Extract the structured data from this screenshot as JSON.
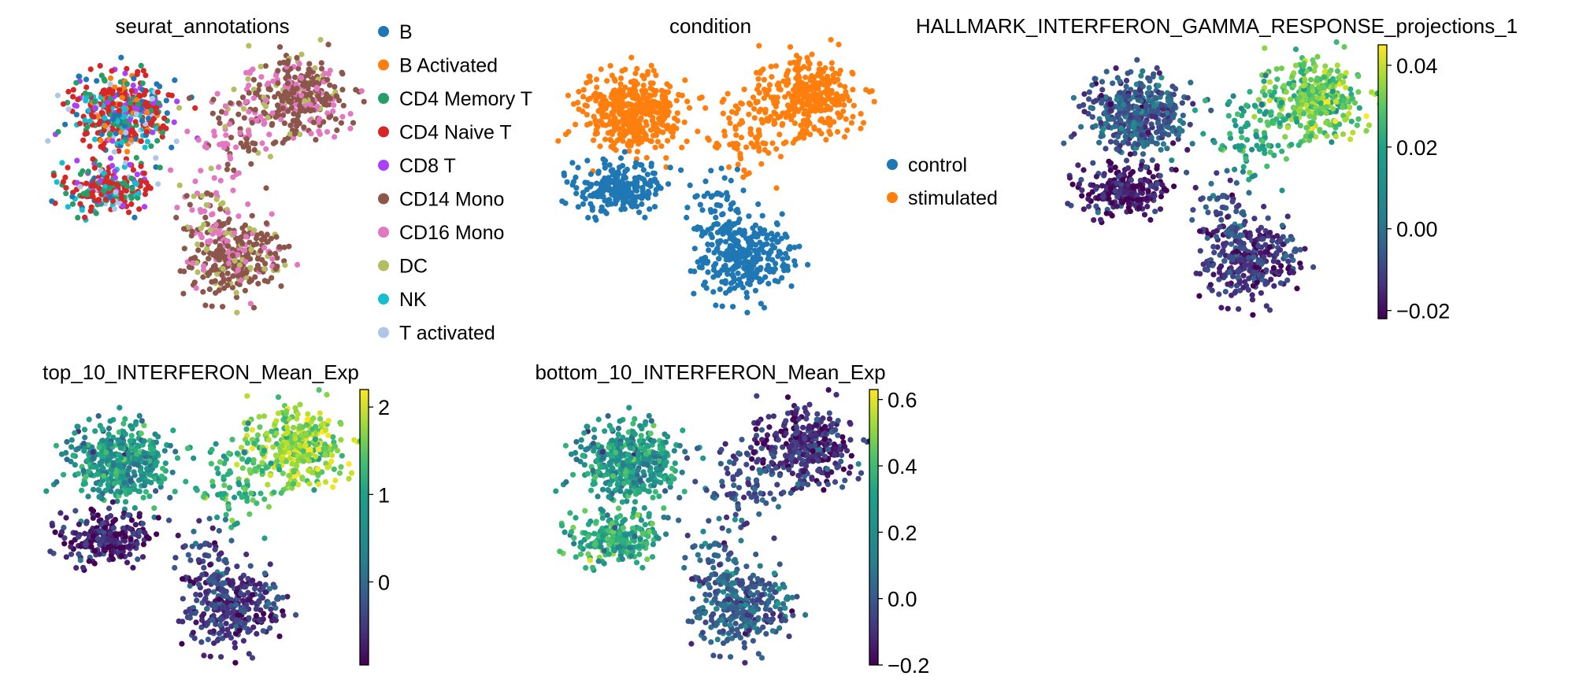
{
  "chart_data": [
    {
      "type": "scatter",
      "title": "seurat_annotations",
      "color_by": "categorical",
      "legend_position": "right",
      "legend": [
        {
          "label": "B",
          "color": "#1f77b4"
        },
        {
          "label": "B Activated",
          "color": "#ff7f0e"
        },
        {
          "label": "CD4 Memory T",
          "color": "#279e68"
        },
        {
          "label": "CD4 Naive T",
          "color": "#d62728"
        },
        {
          "label": "CD8 T",
          "color": "#aa40fc"
        },
        {
          "label": "CD14 Mono",
          "color": "#8c564b"
        },
        {
          "label": "CD16 Mono",
          "color": "#e377c2"
        },
        {
          "label": "DC",
          "color": "#b5bd61"
        },
        {
          "label": "NK",
          "color": "#17becf"
        },
        {
          "label": "T activated",
          "color": "#aec7e8"
        }
      ]
    },
    {
      "type": "scatter",
      "title": "condition",
      "color_by": "categorical",
      "legend_position": "right",
      "legend": [
        {
          "label": "control",
          "color": "#1f77b4"
        },
        {
          "label": "stimulated",
          "color": "#ff7f0e"
        }
      ]
    },
    {
      "type": "scatter",
      "title": "HALLMARK_INTERFERON_GAMMA_RESPONSE_projections_1",
      "color_by": "continuous",
      "colormap": "viridis",
      "clim": [
        -0.022,
        0.045
      ],
      "colorbar_ticks": [
        {
          "value": 0.04,
          "label": "0.04"
        },
        {
          "value": 0.02,
          "label": "0.02"
        },
        {
          "value": 0.0,
          "label": "0.00"
        },
        {
          "value": -0.02,
          "label": "−0.02"
        }
      ],
      "cluster_values": {
        "tcells_a": -0.003,
        "tcells_b": -0.018,
        "mono_stim": 0.03,
        "mono_ctrl": -0.012,
        "bridge_stim": 0.018,
        "bridge_ctrl": -0.006
      }
    },
    {
      "type": "scatter",
      "title": "top_10_INTERFERON_Mean_Exp",
      "color_by": "continuous",
      "colormap": "viridis",
      "clim": [
        -0.95,
        2.2
      ],
      "colorbar_ticks": [
        {
          "value": 2,
          "label": "2"
        },
        {
          "value": 1,
          "label": "1"
        },
        {
          "value": 0,
          "label": "0"
        }
      ],
      "cluster_values": {
        "tcells_a": 0.7,
        "tcells_b": -0.7,
        "mono_stim": 1.7,
        "mono_ctrl": -0.45,
        "bridge_stim": 1.1,
        "bridge_ctrl": -0.3
      }
    },
    {
      "type": "scatter",
      "title": "bottom_10_INTERFERON_Mean_Exp",
      "color_by": "continuous",
      "colormap": "viridis",
      "clim": [
        -0.2,
        0.63
      ],
      "colorbar_ticks": [
        {
          "value": 0.6,
          "label": "0.6"
        },
        {
          "value": 0.4,
          "label": "0.4"
        },
        {
          "value": 0.2,
          "label": "0.2"
        },
        {
          "value": 0.0,
          "label": "0.0"
        },
        {
          "value": -0.2,
          "label": "−0.2"
        }
      ],
      "cluster_values": {
        "tcells_a": 0.24,
        "tcells_b": 0.3,
        "mono_stim": -0.08,
        "mono_ctrl": 0.05,
        "bridge_stim": 0.0,
        "bridge_ctrl": 0.06
      }
    }
  ]
}
